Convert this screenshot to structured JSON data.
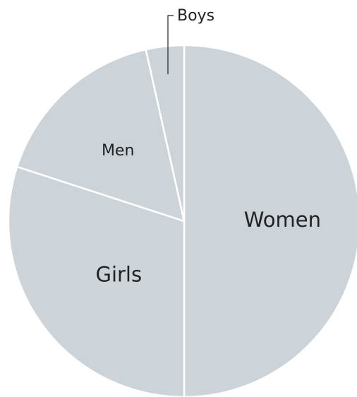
{
  "chart_data": {
    "type": "pie",
    "title": "",
    "start": "12 o'clock",
    "direction": "clockwise",
    "slices": [
      {
        "label": "Women",
        "value": 50.0
      },
      {
        "label": "Girls",
        "value": 30.0
      },
      {
        "label": "Men",
        "value": 16.5
      },
      {
        "label": "Boys",
        "value": 3.5
      }
    ],
    "colors": {
      "fill": "#ccd3d9",
      "separator": "#ffffff"
    },
    "legend": "none"
  }
}
